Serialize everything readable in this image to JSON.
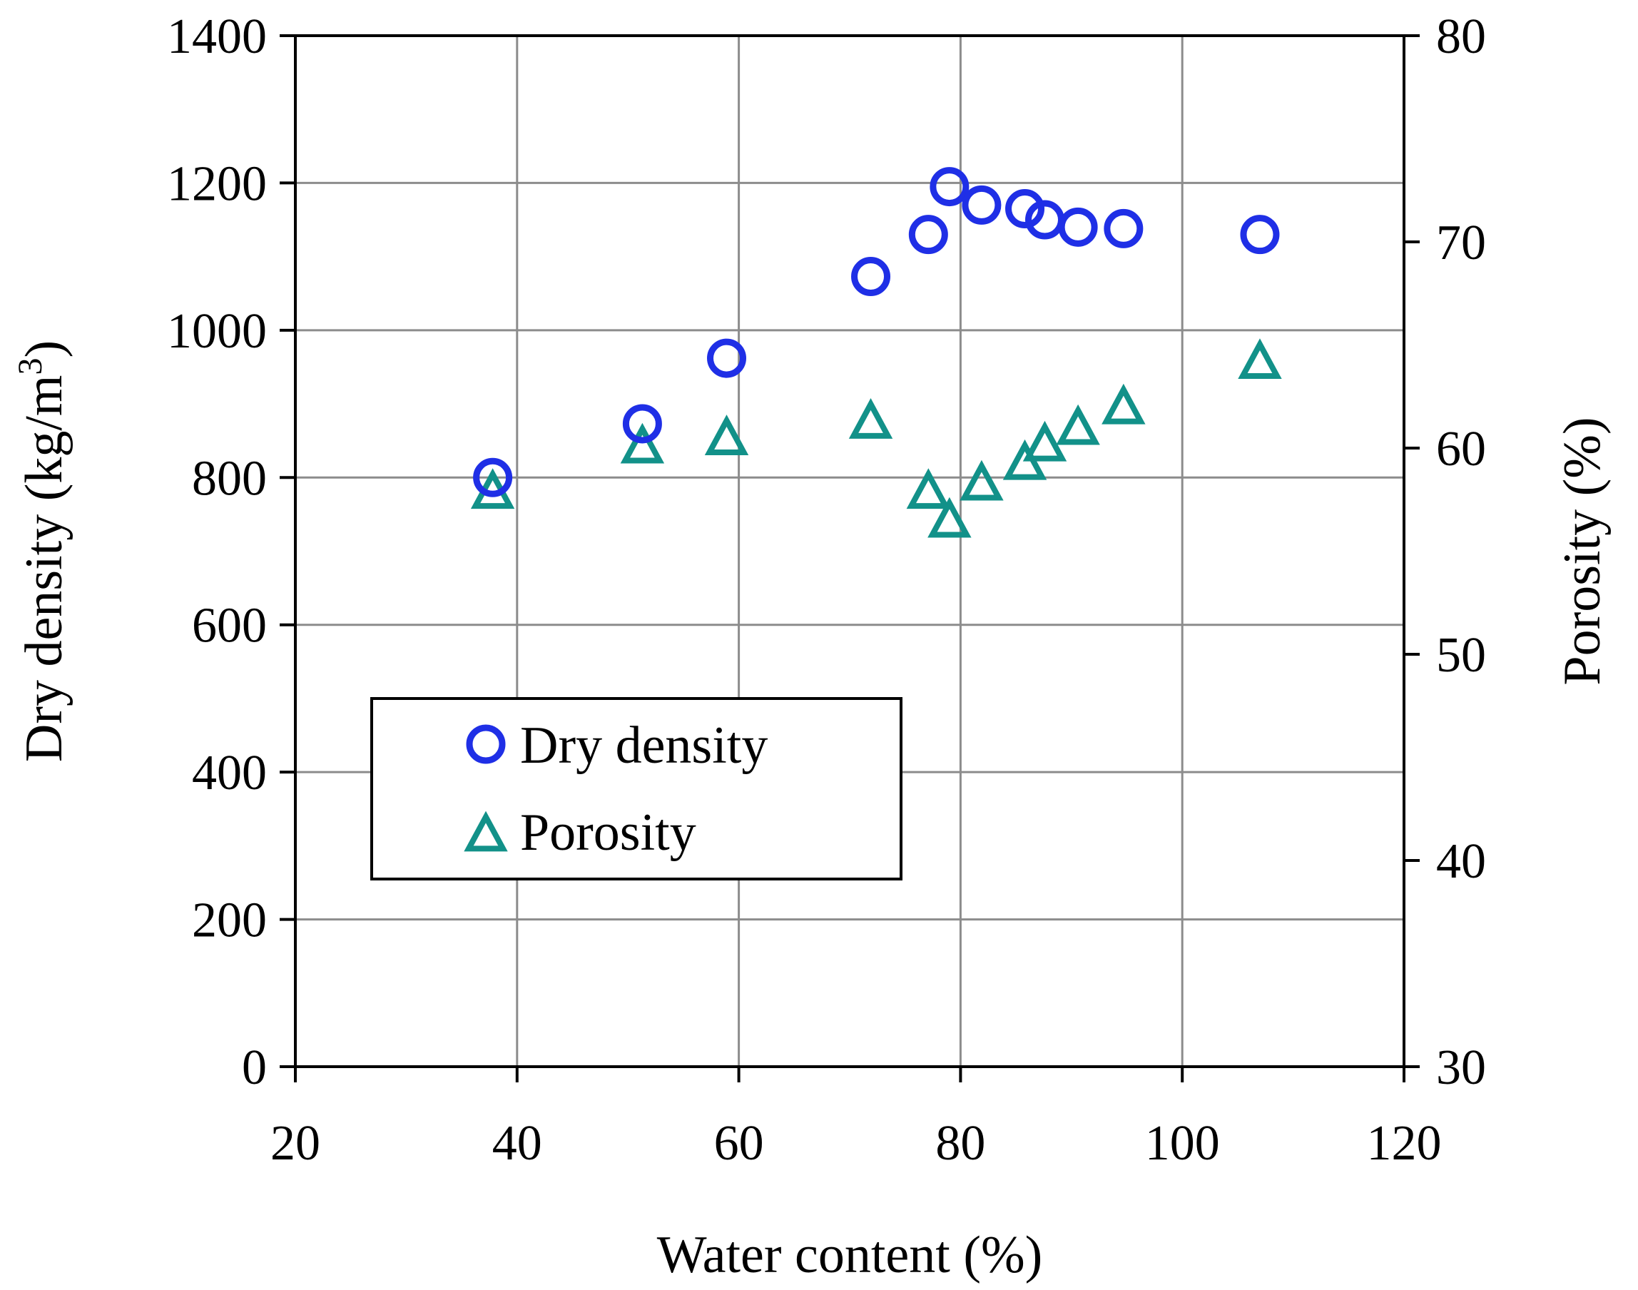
{
  "chart_data": {
    "type": "scatter",
    "title": "",
    "xlabel": "Water content (%)",
    "ylabel_left": "Dry density (kg/m3)",
    "ylabel_left_parts": {
      "main": "Dry density (kg/m",
      "sup": "3",
      "end": ")"
    },
    "ylabel_right": "Porosity (%)",
    "xlim": [
      20,
      120
    ],
    "ylim_left": [
      0,
      1400
    ],
    "ylim_right": [
      30,
      80
    ],
    "x_ticks": [
      20,
      40,
      60,
      80,
      100,
      120
    ],
    "y_left_ticks": [
      0,
      200,
      400,
      600,
      800,
      1000,
      1200,
      1400
    ],
    "y_right_ticks": [
      30,
      40,
      50,
      60,
      70,
      80
    ],
    "grid": true,
    "legend_position": "center-left",
    "series": [
      {
        "name": "Dry density",
        "axis": "left",
        "marker": "circle",
        "color": "#1f2fe6",
        "x": [
          37.8,
          51.3,
          58.9,
          71.9,
          77.1,
          79.0,
          81.9,
          85.8,
          87.6,
          90.6,
          94.7,
          107.0
        ],
        "y": [
          800,
          873,
          962,
          1073,
          1130,
          1195,
          1170,
          1165,
          1150,
          1140,
          1138,
          1130
        ]
      },
      {
        "name": "Porosity",
        "axis": "right",
        "marker": "triangle",
        "color": "#129189",
        "x": [
          37.8,
          51.3,
          58.9,
          71.9,
          77.1,
          79.0,
          81.9,
          85.8,
          87.6,
          90.6,
          94.7,
          107.0
        ],
        "y": [
          57.9,
          60.1,
          60.5,
          61.3,
          57.9,
          56.5,
          58.3,
          59.3,
          60.2,
          61.0,
          62.0,
          64.2
        ]
      }
    ]
  }
}
